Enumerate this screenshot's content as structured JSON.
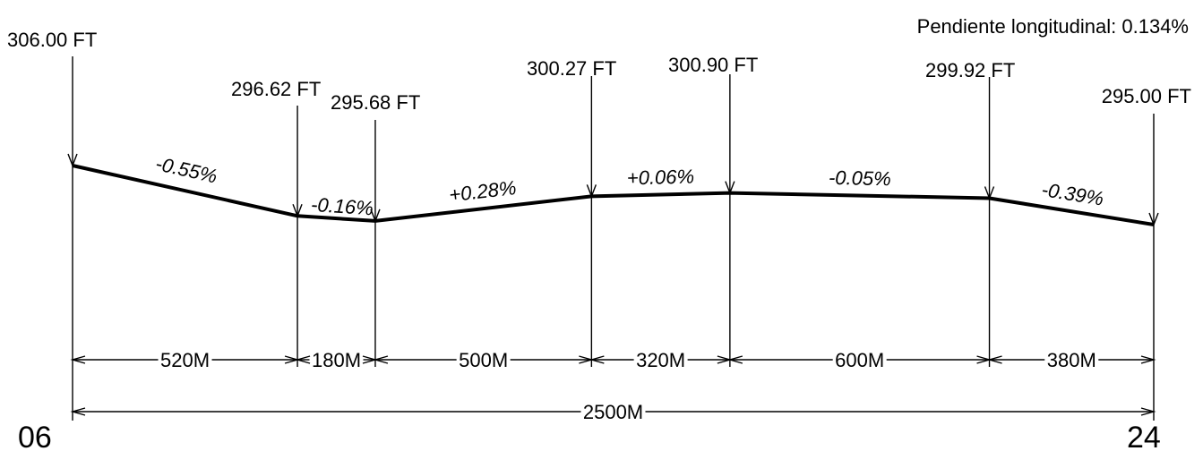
{
  "title": "Pendiente longitudinal: 0.134%",
  "points": [
    {
      "elevation": "306.00 FT",
      "elev": 306.0
    },
    {
      "elevation": "296.62 FT",
      "elev": 296.62
    },
    {
      "elevation": "295.68 FT",
      "elev": 295.68
    },
    {
      "elevation": "300.27 FT",
      "elev": 300.27
    },
    {
      "elevation": "300.90 FT",
      "elev": 300.9
    },
    {
      "elevation": "299.92 FT",
      "elev": 299.92
    },
    {
      "elevation": "295.00 FT",
      "elev": 295.0
    }
  ],
  "segments": [
    {
      "grade": "-0.55%",
      "length": "520M",
      "meters": 520
    },
    {
      "grade": "-0.16%",
      "length": "180M",
      "meters": 180
    },
    {
      "grade": "+0.28%",
      "length": "500M",
      "meters": 500
    },
    {
      "grade": "+0.06%",
      "length": "320M",
      "meters": 320
    },
    {
      "grade": "-0.05%",
      "length": "600M",
      "meters": 600
    },
    {
      "grade": "-0.39%",
      "length": "380M",
      "meters": 380
    }
  ],
  "total_length": "2500M",
  "runway_start": "06",
  "runway_end": "24"
}
